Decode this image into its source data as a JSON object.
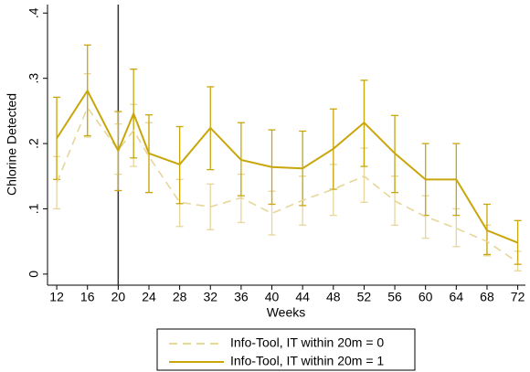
{
  "chart_data": {
    "type": "line",
    "x_label": "Weeks",
    "y_label": "Chlorine Detected",
    "x": [
      12,
      16,
      20,
      22,
      24,
      28,
      32,
      36,
      40,
      44,
      48,
      52,
      56,
      60,
      64,
      68,
      72
    ],
    "xlim": [
      10.8,
      73
    ],
    "xticks": [
      12,
      16,
      20,
      24,
      28,
      32,
      36,
      40,
      44,
      48,
      52,
      56,
      60,
      64,
      68,
      72
    ],
    "ylim": [
      -0.017,
      0.413
    ],
    "yticks": [
      0,
      {
        "value": 0.1,
        "label": ".1"
      },
      {
        "value": 0.2,
        "label": ".2"
      },
      {
        "value": 0.3,
        "label": ".3"
      },
      {
        "value": 0.4,
        "label": ".4"
      }
    ],
    "vline_x": 20,
    "series": [
      {
        "name": "Info-Tool, IT within 20m = 0",
        "color": "#e6d69a",
        "dashed": true,
        "values": [
          0.14,
          0.255,
          0.19,
          0.22,
          0.18,
          0.11,
          0.103,
          0.117,
          0.093,
          0.113,
          0.13,
          0.15,
          0.112,
          0.088,
          0.07,
          0.05,
          0.018
        ],
        "lower": [
          0.1,
          0.21,
          0.153,
          0.165,
          0.125,
          0.073,
          0.068,
          0.079,
          0.06,
          0.075,
          0.09,
          0.11,
          0.075,
          0.055,
          0.042,
          0.028,
          0.005
        ],
        "upper": [
          0.18,
          0.307,
          0.23,
          0.26,
          0.232,
          0.145,
          0.138,
          0.153,
          0.127,
          0.15,
          0.168,
          0.193,
          0.15,
          0.12,
          0.1,
          0.075,
          0.035
        ]
      },
      {
        "name": "Info-Tool, IT within 20m = 1",
        "color": "#c8a60c",
        "dashed": false,
        "values": [
          0.208,
          0.281,
          0.189,
          0.246,
          0.185,
          0.168,
          0.224,
          0.175,
          0.164,
          0.162,
          0.192,
          0.232,
          0.185,
          0.145,
          0.145,
          0.067,
          0.048
        ],
        "lower": [
          0.145,
          0.212,
          0.128,
          0.178,
          0.125,
          0.108,
          0.16,
          0.12,
          0.107,
          0.105,
          0.13,
          0.165,
          0.125,
          0.09,
          0.09,
          0.03,
          0.015
        ],
        "upper": [
          0.271,
          0.351,
          0.249,
          0.314,
          0.244,
          0.226,
          0.287,
          0.232,
          0.221,
          0.219,
          0.253,
          0.297,
          0.243,
          0.2,
          0.2,
          0.107,
          0.082
        ]
      }
    ]
  }
}
